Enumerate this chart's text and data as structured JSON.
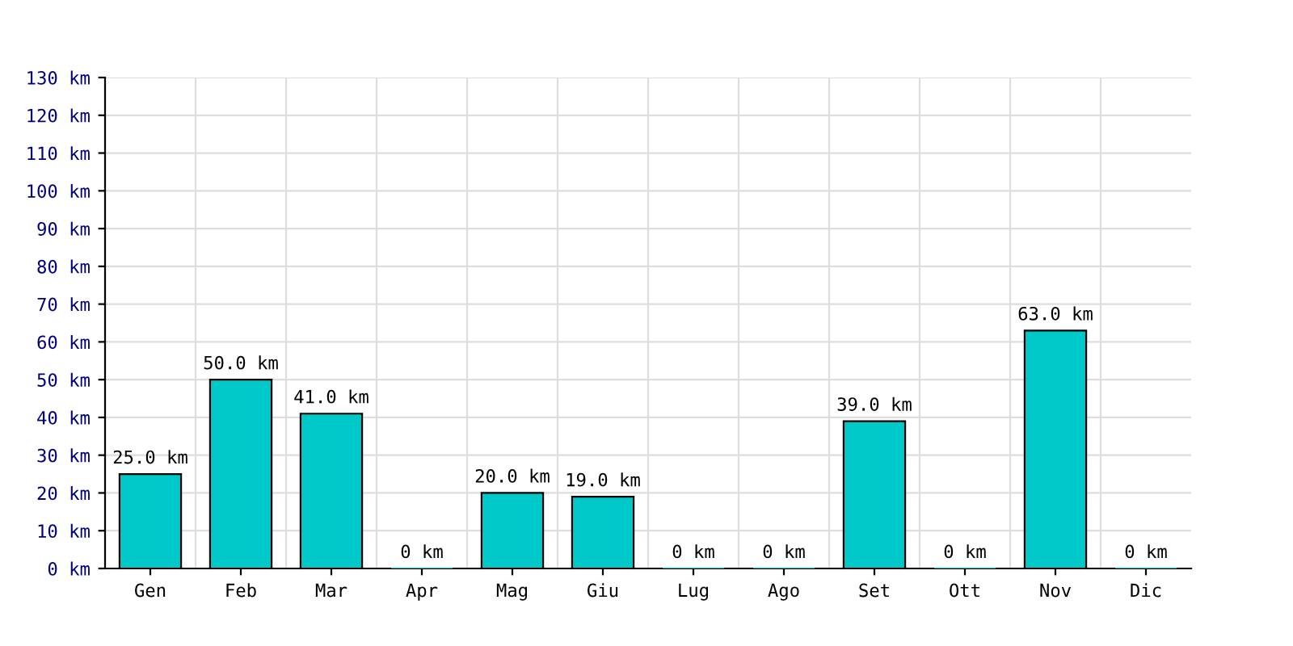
{
  "chart_data": {
    "type": "bar",
    "categories": [
      "Gen",
      "Feb",
      "Mar",
      "Apr",
      "Mag",
      "Giu",
      "Lug",
      "Ago",
      "Set",
      "Ott",
      "Nov",
      "Dic"
    ],
    "values": [
      25,
      50,
      41,
      0,
      20,
      19,
      0,
      0,
      39,
      0,
      63,
      0
    ],
    "value_labels": [
      "25.0 km",
      "50.0 km",
      "41.0 km",
      "0 km",
      "20.0 km",
      "19.0 km",
      "0 km",
      "0 km",
      "39.0 km",
      "0 km",
      "63.0 km",
      "0 km"
    ],
    "color": "#00c8c8",
    "ylim": [
      0,
      130
    ],
    "yticks": [
      {
        "value": 0,
        "label": "0 km"
      },
      {
        "value": 10,
        "label": "10 km"
      },
      {
        "value": 20,
        "label": "20 km"
      },
      {
        "value": 30,
        "label": "30 km"
      },
      {
        "value": 40,
        "label": "40 km"
      },
      {
        "value": 50,
        "label": "50 km"
      },
      {
        "value": 60,
        "label": "60 km"
      },
      {
        "value": 70,
        "label": "70 km"
      },
      {
        "value": 80,
        "label": "80 km"
      },
      {
        "value": 90,
        "label": "90 km"
      },
      {
        "value": 100,
        "label": "100 km"
      },
      {
        "value": 110,
        "label": "110 km"
      },
      {
        "value": 120,
        "label": "120 km"
      },
      {
        "value": 130,
        "label": "130 km"
      }
    ],
    "grid": true
  }
}
